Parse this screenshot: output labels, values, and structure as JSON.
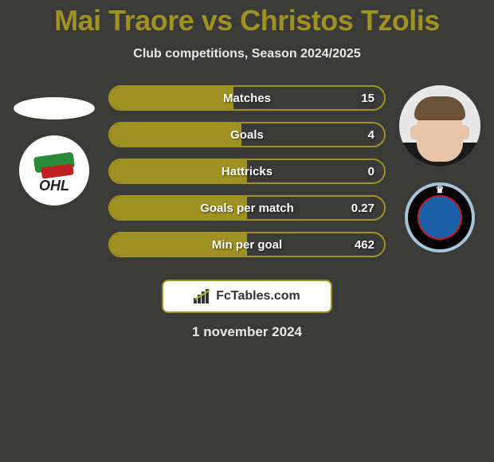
{
  "title": "Mai Traore vs Christos Tzolis",
  "subtitle": "Club competitions, Season 2024/2025",
  "date": "1 november 2024",
  "brand": "FcTables.com",
  "colors": {
    "accent": "#a09123",
    "background": "#3a3a39",
    "text_light": "#e8e8e8",
    "text_white": "#ffffff"
  },
  "stats": [
    {
      "label": "Matches",
      "value": "15",
      "fill_pct": 45
    },
    {
      "label": "Goals",
      "value": "4",
      "fill_pct": 48
    },
    {
      "label": "Hattricks",
      "value": "0",
      "fill_pct": 50
    },
    {
      "label": "Goals per match",
      "value": "0.27",
      "fill_pct": 50
    },
    {
      "label": "Min per goal",
      "value": "462",
      "fill_pct": 50
    }
  ],
  "player1": {
    "name": "Mai Traore",
    "club": "OHL"
  },
  "player2": {
    "name": "Christos Tzolis",
    "club": "Club Brugge"
  },
  "typography": {
    "title_fontsize": 36,
    "subtitle_fontsize": 16,
    "stat_fontsize": 15,
    "date_fontsize": 17
  }
}
